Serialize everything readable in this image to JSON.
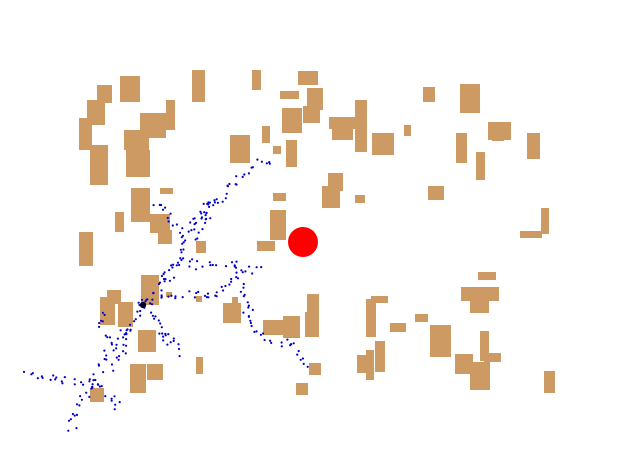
{
  "colors": {
    "background": "#ffffff",
    "obstacle": "#cd9a63",
    "tree_node": "#0000cc",
    "goal": "#ff0000",
    "start": "#000033"
  },
  "obstacles_label": "",
  "goal_label": "",
  "start_label": ""
}
